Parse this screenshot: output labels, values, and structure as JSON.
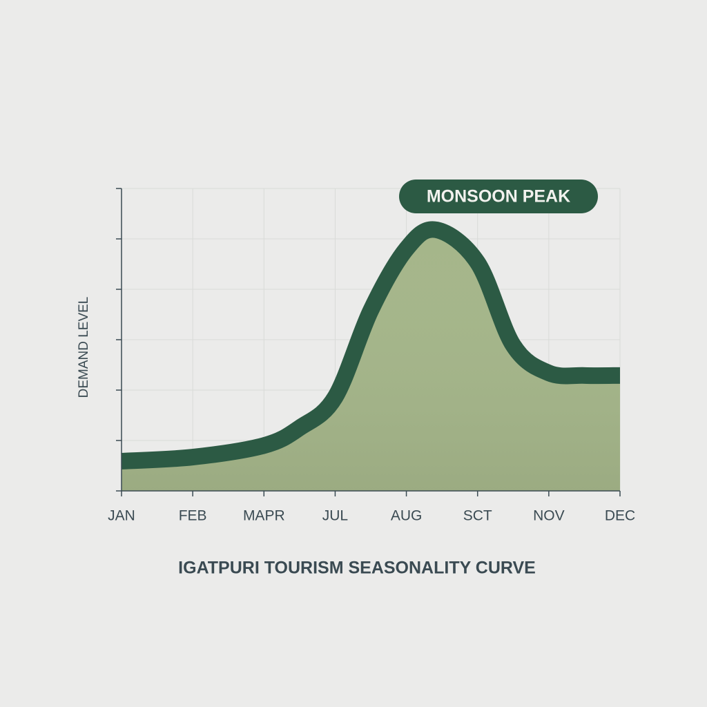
{
  "chart_data": {
    "type": "area",
    "title": "IGATPURI TOURISM SEASONALITY CURVE",
    "y_label": "DEMAND LEVEL",
    "annotation": "MONSOON PEAK",
    "x": [
      0,
      1,
      2,
      2.5,
      3,
      3.5,
      4,
      4.42,
      5,
      5.5,
      6,
      6.5,
      7
    ],
    "values": [
      0.59,
      0.67,
      0.9,
      1.25,
      1.86,
      3.58,
      4.8,
      5.18,
      4.53,
      2.89,
      2.34,
      2.29,
      2.29
    ],
    "xlim": [
      0,
      7
    ],
    "xticks": [
      {
        "value": 0,
        "label": "JAN"
      },
      {
        "value": 1,
        "label": "FEB"
      },
      {
        "value": 2,
        "label": "MAPR"
      },
      {
        "value": 3,
        "label": "JUL"
      },
      {
        "value": 4,
        "label": "AUG"
      },
      {
        "value": 5,
        "label": "SCT"
      },
      {
        "value": 6,
        "label": "NOV"
      },
      {
        "value": 7,
        "label": "DEC"
      }
    ],
    "ylim": [
      0,
      6
    ],
    "yticks": [
      0,
      1,
      2,
      3,
      4,
      5,
      6
    ],
    "grid": true,
    "line_color": "#2c5a44",
    "fill_color": "#a5b68a"
  }
}
